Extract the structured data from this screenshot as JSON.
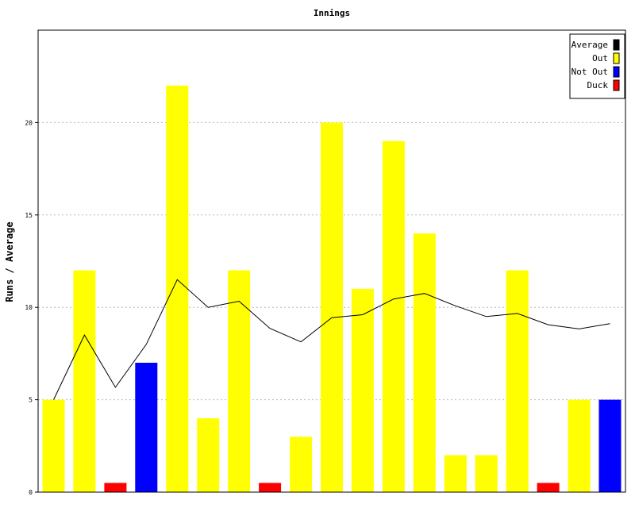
{
  "chart_data": {
    "type": "bar",
    "title": "Innings",
    "xlabel": "",
    "ylabel": "Runs / Average",
    "ylim": [
      0,
      25
    ],
    "yticks": [
      0,
      5,
      10,
      15,
      20
    ],
    "grid": true,
    "legend_position": "top-right",
    "legend": [
      {
        "name": "Average",
        "color": "#000000"
      },
      {
        "name": "Out",
        "color": "#ffff00"
      },
      {
        "name": "Not Out",
        "color": "#0000ff"
      },
      {
        "name": "Duck",
        "color": "#ff0000"
      }
    ],
    "innings": [
      {
        "runs": 5,
        "status": "Out"
      },
      {
        "runs": 12,
        "status": "Out"
      },
      {
        "runs": 0,
        "status": "Duck"
      },
      {
        "runs": 7,
        "status": "Not Out"
      },
      {
        "runs": 22,
        "status": "Out"
      },
      {
        "runs": 4,
        "status": "Out"
      },
      {
        "runs": 12,
        "status": "Out"
      },
      {
        "runs": 0,
        "status": "Duck"
      },
      {
        "runs": 3,
        "status": "Out"
      },
      {
        "runs": 20,
        "status": "Out"
      },
      {
        "runs": 11,
        "status": "Out"
      },
      {
        "runs": 19,
        "status": "Out"
      },
      {
        "runs": 14,
        "status": "Out"
      },
      {
        "runs": 2,
        "status": "Out"
      },
      {
        "runs": 2,
        "status": "Out"
      },
      {
        "runs": 12,
        "status": "Out"
      },
      {
        "runs": 0,
        "status": "Duck"
      },
      {
        "runs": 5,
        "status": "Out"
      },
      {
        "runs": 5,
        "status": "Not Out"
      }
    ],
    "average": [
      5,
      8.5,
      5.67,
      8,
      11.5,
      10,
      10.33,
      8.86,
      8.13,
      9.44,
      9.6,
      10.45,
      10.75,
      10.08,
      9.5,
      9.67,
      9.06,
      8.83,
      9.12
    ],
    "duck_marker_value": 0.5
  }
}
